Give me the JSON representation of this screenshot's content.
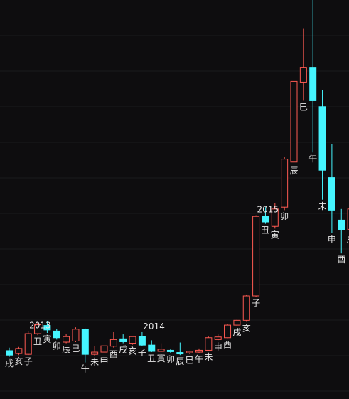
{
  "chart_data": {
    "type": "candlestick",
    "title": "",
    "xlabel": "",
    "ylabel": "",
    "grid": true,
    "colors": {
      "up": "#ff5a52",
      "down": "#45f5ff",
      "text": "#e6e6e6",
      "background": "#0e0d0f"
    },
    "y_range": [
      0,
      1000
    ],
    "candles": [
      {
        "label": "戌",
        "o": 52,
        "c": 40,
        "h": 60,
        "l": 35
      },
      {
        "label": "亥",
        "o": 44,
        "c": 58,
        "h": 62,
        "l": 40
      },
      {
        "label": "子",
        "o": 42,
        "c": 98,
        "h": 105,
        "l": 40
      },
      {
        "label": "丑",
        "o": 98,
        "c": 122,
        "h": 128,
        "l": 94
      },
      {
        "label": "寅",
        "o": 120,
        "c": 108,
        "h": 132,
        "l": 100
      },
      {
        "label": "卯",
        "o": 105,
        "c": 87,
        "h": 110,
        "l": 82
      },
      {
        "label": "辰",
        "o": 75,
        "c": 90,
        "h": 98,
        "l": 72
      },
      {
        "label": "巳",
        "o": 78,
        "c": 110,
        "h": 115,
        "l": 75
      },
      {
        "label": "午",
        "o": 110,
        "c": 42,
        "h": 112,
        "l": 20
      },
      {
        "label": "未",
        "o": 42,
        "c": 48,
        "h": 65,
        "l": 38
      },
      {
        "label": "申",
        "o": 48,
        "c": 65,
        "h": 90,
        "l": 42
      },
      {
        "label": "酉",
        "o": 64,
        "c": 82,
        "h": 102,
        "l": 60
      },
      {
        "label": "戌",
        "o": 84,
        "c": 76,
        "h": 96,
        "l": 72
      },
      {
        "label": "亥",
        "o": 72,
        "c": 90,
        "h": 92,
        "l": 68
      },
      {
        "label": "子",
        "o": 90,
        "c": 67,
        "h": 102,
        "l": 64
      },
      {
        "label": "丑",
        "o": 67,
        "c": 50,
        "h": 80,
        "l": 48
      },
      {
        "label": "寅",
        "o": 50,
        "c": 56,
        "h": 72,
        "l": 48
      },
      {
        "label": "卯",
        "o": 53,
        "c": 51,
        "h": 56,
        "l": 45
      },
      {
        "label": "辰",
        "o": 47,
        "c": 46,
        "h": 74,
        "l": 40
      },
      {
        "label": "巳",
        "o": 46,
        "c": 50,
        "h": 52,
        "l": 43
      },
      {
        "label": "午",
        "o": 48,
        "c": 53,
        "h": 58,
        "l": 46
      },
      {
        "label": "未",
        "o": 53,
        "c": 87,
        "h": 90,
        "l": 52
      },
      {
        "label": "申",
        "o": 82,
        "c": 89,
        "h": 96,
        "l": 80
      },
      {
        "label": "酉",
        "o": 87,
        "c": 121,
        "h": 124,
        "l": 86
      },
      {
        "label": "戌",
        "o": 121,
        "c": 134,
        "h": 136,
        "l": 118
      },
      {
        "label": "亥",
        "o": 134,
        "c": 200,
        "h": 202,
        "l": 130
      },
      {
        "label": "子",
        "o": 200,
        "c": 415,
        "h": 418,
        "l": 198
      },
      {
        "label": "丑",
        "o": 415,
        "c": 400,
        "h": 440,
        "l": 395
      },
      {
        "label": "寅",
        "o": 388,
        "c": 435,
        "h": 450,
        "l": 382
      },
      {
        "label": "卯",
        "o": 440,
        "c": 570,
        "h": 575,
        "l": 432
      },
      {
        "label": "辰",
        "o": 562,
        "c": 780,
        "h": 802,
        "l": 556
      },
      {
        "label": "巳",
        "o": 778,
        "c": 818,
        "h": 922,
        "l": 728
      },
      {
        "label": "午",
        "o": 818,
        "c": 728,
        "h": 1000,
        "l": 588
      },
      {
        "label": "未",
        "o": 712,
        "c": 540,
        "h": 756,
        "l": 460
      },
      {
        "label": "申",
        "o": 520,
        "c": 432,
        "h": 610,
        "l": 370
      },
      {
        "label": "酉",
        "o": 405,
        "c": 378,
        "h": 435,
        "l": 315
      },
      {
        "label": "戌",
        "o": 380,
        "c": 435,
        "h": 475,
        "l": 370
      }
    ],
    "annotations": [
      "2013",
      "2014",
      "2015"
    ]
  }
}
